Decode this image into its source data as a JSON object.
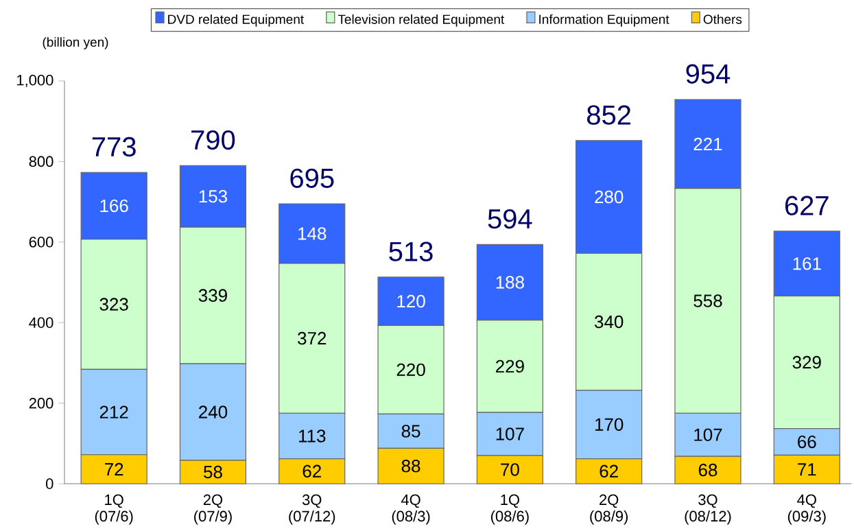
{
  "chart_data": {
    "type": "bar",
    "stacked": true,
    "ylabel": "(billion yen)",
    "categories": [
      "1Q (07/6)",
      "2Q (07/9)",
      "3Q (07/12)",
      "4Q (08/3)",
      "1Q (08/6)",
      "2Q (08/9)",
      "3Q (08/12)",
      "4Q (09/3)"
    ],
    "series": [
      {
        "name": "Others",
        "color": "#ffcc00",
        "values": [
          72,
          58,
          62,
          88,
          70,
          62,
          68,
          71
        ]
      },
      {
        "name": "Information Equipment",
        "color": "#99ccff",
        "values": [
          212,
          240,
          113,
          85,
          107,
          170,
          107,
          66
        ]
      },
      {
        "name": "Television related Equipment",
        "color": "#ccffcc",
        "values": [
          323,
          339,
          372,
          220,
          229,
          340,
          558,
          329
        ]
      },
      {
        "name": "DVD related Equipment",
        "color": "#3366ff",
        "values": [
          166,
          153,
          148,
          120,
          188,
          280,
          221,
          161
        ]
      }
    ],
    "ylim": [
      0,
      1000
    ],
    "yticks": [
      0,
      200,
      400,
      600,
      800,
      {
        "value": 1000,
        "label": "1,000"
      }
    ],
    "data_labels": true,
    "totals": [
      "773",
      "790",
      "695",
      "513",
      "594",
      "852",
      "954",
      "627"
    ],
    "legend": "top",
    "grid": false
  }
}
